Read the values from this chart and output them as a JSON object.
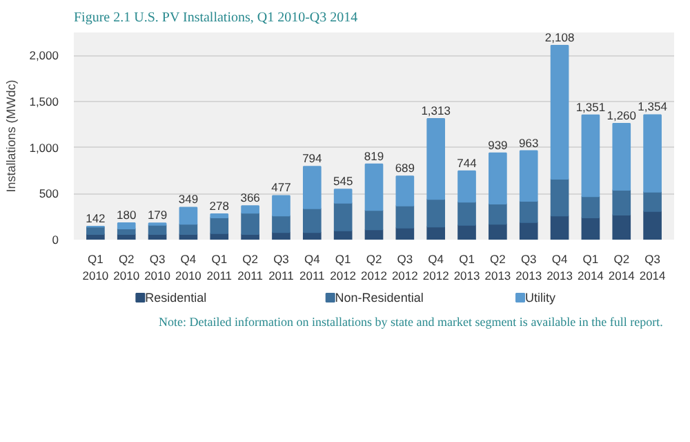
{
  "chart_data": {
    "type": "bar",
    "stacked": true,
    "title": "Figure 2.1  U.S. PV Installations, Q1 2010-Q3 2014",
    "ylabel": "Installations (MWdc)",
    "categories": [
      "Q1\n2010",
      "Q2\n2010",
      "Q3\n2010",
      "Q4\n2010",
      "Q1\n2011",
      "Q2\n2011",
      "Q3\n2011",
      "Q4\n2011",
      "Q1\n2012",
      "Q2\n2012",
      "Q3\n2012",
      "Q4\n2012",
      "Q1\n2013",
      "Q2\n2013",
      "Q3\n2013",
      "Q4\n2013",
      "Q1\n2014",
      "Q2\n2014",
      "Q3\n2014"
    ],
    "series": [
      {
        "name": "Residential",
        "color": "#2b4f78",
        "values": [
          60,
          60,
          60,
          60,
          70,
          60,
          80,
          80,
          100,
          110,
          130,
          140,
          160,
          170,
          190,
          260,
          240,
          270,
          310
        ]
      },
      {
        "name": "Non-Residential",
        "color": "#3d6f9a",
        "values": [
          80,
          60,
          100,
          110,
          170,
          230,
          180,
          260,
          300,
          210,
          240,
          300,
          250,
          220,
          230,
          400,
          230,
          270,
          210
        ]
      },
      {
        "name": "Utility",
        "color": "#5b9bd0",
        "values": [
          2,
          60,
          19,
          179,
          38,
          76,
          217,
          454,
          145,
          499,
          319,
          873,
          334,
          549,
          543,
          1448,
          881,
          720,
          834
        ]
      }
    ],
    "totals": [
      "142",
      "180",
      "179",
      "349",
      "278",
      "366",
      "477",
      "794",
      "545",
      "819",
      "689",
      "1,313",
      "744",
      "939",
      "963",
      "2,108",
      "1,351",
      "1,260",
      "1,354"
    ],
    "ylim": [
      0,
      2250
    ],
    "yticks": [
      {
        "value": 0,
        "label": "0"
      },
      {
        "value": 500,
        "label": "500"
      },
      {
        "value": 1000,
        "label": "1,000"
      },
      {
        "value": 1500,
        "label": "1,500"
      },
      {
        "value": 2000,
        "label": "2,000"
      }
    ],
    "grid": "y",
    "legend": "bottom",
    "annotations": [
      "Note: Detailed information on installations by state and market segment is available in the full report."
    ]
  }
}
